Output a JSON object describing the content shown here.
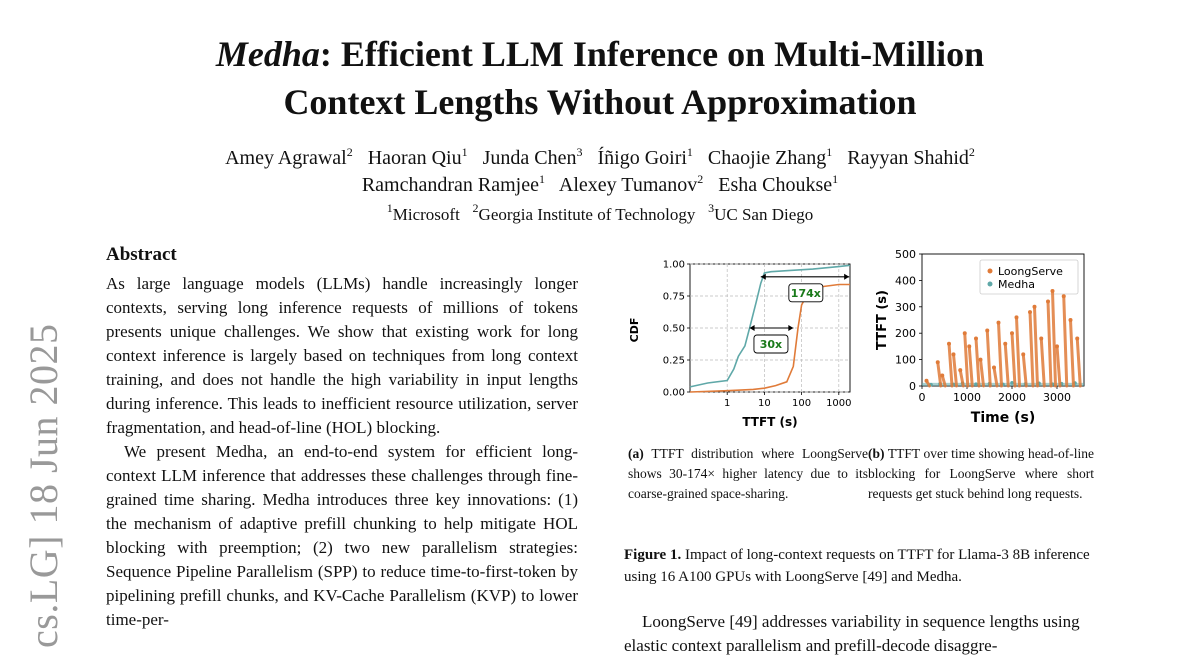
{
  "title": {
    "italic": "Medha",
    "line1_rest": ": Efficient LLM Inference on Multi-Million",
    "line2": "Context Lengths Without Approximation"
  },
  "authors": [
    {
      "name": "Amey Agrawal",
      "aff": "2"
    },
    {
      "name": "Haoran Qiu",
      "aff": "1"
    },
    {
      "name": "Junda Chen",
      "aff": "3"
    },
    {
      "name": "Íñigo Goiri",
      "aff": "1"
    },
    {
      "name": "Chaojie Zhang",
      "aff": "1"
    },
    {
      "name": "Rayyan Shahid",
      "aff": "2"
    },
    {
      "name": "Ramchandran Ramjee",
      "aff": "1"
    },
    {
      "name": "Alexey Tumanov",
      "aff": "2"
    },
    {
      "name": "Esha Choukse",
      "aff": "1"
    }
  ],
  "affiliations": [
    {
      "num": "1",
      "name": "Microsoft"
    },
    {
      "num": "2",
      "name": "Georgia Institute of Technology"
    },
    {
      "num": "3",
      "name": "UC San Diego"
    }
  ],
  "arxiv_stamp": "cs.LG]  18 Jun 2025",
  "abstract": {
    "heading": "Abstract",
    "p1": "As large language models (LLMs) handle increasingly longer contexts, serving long inference requests of millions of tokens presents unique challenges. We show that existing work for long context inference is largely based on techniques from long context training, and does not handle the high variability in input lengths during inference. This leads to inefficient resource utilization, server fragmentation, and head-of-line (HOL) blocking.",
    "p2": "We present Medha, an end-to-end system for efficient long-context LLM inference that addresses these challenges through fine-grained time sharing. Medha introduces three key innovations: (1) the mechanism of adaptive prefill chunking to help mitigate HOL blocking with preemption; (2) two new parallelism strategies: Sequence Pipeline Parallelism (SPP) to reduce time-to-first-token by pipelining prefill chunks, and KV-Cache Parallelism (KVP) to lower time-per-"
  },
  "figure": {
    "caption_label": "Figure 1.",
    "caption_text": " Impact of long-context requests on TTFT for Llama-3 8B inference using 16 A100 GPUs with LoongServe [49] and Medha.",
    "sub_a_label": "(a)",
    "sub_a_text": " TTFT distribution where LoongServe shows 30-174× higher latency due to its coarse-grained space-sharing.",
    "sub_b_label": "(b)",
    "sub_b_text": " TTFT over time showing head-of-line blocking for LoongServe where short requests get stuck behind long requests."
  },
  "right_para": "LoongServe [49] addresses variability in sequence lengths using elastic context parallelism and prefill-decode disaggre-",
  "chart_data": [
    {
      "type": "line",
      "xlabel": "TTFT (s)",
      "ylabel": "CDF",
      "x_scale": "log",
      "xlim": [
        0.1,
        2000
      ],
      "ylim": [
        0,
        1
      ],
      "x_ticks": [
        "1",
        "10",
        "100",
        "1000"
      ],
      "y_ticks": [
        "0.00",
        "0.25",
        "0.50",
        "0.75",
        "1.00"
      ],
      "grid": true,
      "series": [
        {
          "color": "#5fa8a8",
          "x": [
            0.1,
            0.3,
            1,
            1.5,
            2,
            3,
            4,
            6,
            8,
            10,
            15,
            50,
            200,
            1000,
            2000
          ],
          "y": [
            0.04,
            0.07,
            0.09,
            0.18,
            0.28,
            0.36,
            0.5,
            0.7,
            0.85,
            0.93,
            0.94,
            0.95,
            0.96,
            0.98,
            0.99
          ]
        },
        {
          "color": "#e07b39",
          "x": [
            0.1,
            1,
            5,
            10,
            20,
            40,
            60,
            80,
            100,
            150,
            300,
            1000,
            2000
          ],
          "y": [
            0.0,
            0.01,
            0.02,
            0.03,
            0.05,
            0.08,
            0.2,
            0.5,
            0.68,
            0.78,
            0.82,
            0.84,
            0.84
          ]
        }
      ],
      "annotations": [
        {
          "text": "174x",
          "at_y": 0.9
        },
        {
          "text": "30x",
          "at_y": 0.5
        }
      ]
    },
    {
      "type": "scatter",
      "xlabel": "Time (s)",
      "ylabel": "TTFT (s)",
      "xlim": [
        0,
        3600
      ],
      "ylim": [
        0,
        500
      ],
      "x_ticks": [
        "0",
        "1000",
        "2000",
        "3000"
      ],
      "y_ticks": [
        "0",
        "100",
        "200",
        "300",
        "400",
        "500"
      ],
      "legend_position": "top-right",
      "series": [
        {
          "name": "LoongServe",
          "color": "#e07b39",
          "x": [
            100,
            350,
            450,
            600,
            700,
            850,
            950,
            1050,
            1200,
            1300,
            1450,
            1600,
            1700,
            1850,
            2000,
            2100,
            2250,
            2400,
            2500,
            2650,
            2800,
            2900,
            3000,
            3150,
            3300,
            3450
          ],
          "y": [
            20,
            90,
            40,
            160,
            120,
            60,
            200,
            150,
            180,
            100,
            210,
            70,
            240,
            160,
            200,
            260,
            120,
            280,
            300,
            180,
            320,
            360,
            150,
            340,
            250,
            180
          ]
        },
        {
          "name": "Medha",
          "color": "#5fa8a8",
          "x": [
            200,
            400,
            700,
            900,
            1200,
            1500,
            1800,
            2000,
            2300,
            2600,
            2900,
            3100,
            3400
          ],
          "y": [
            5,
            8,
            6,
            10,
            7,
            9,
            6,
            12,
            8,
            10,
            7,
            9,
            11
          ]
        }
      ]
    }
  ]
}
